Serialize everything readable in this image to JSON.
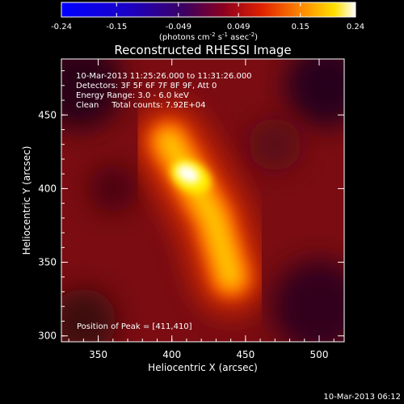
{
  "chart_data": {
    "type": "heatmap",
    "title": "Reconstructed RHESSI Image",
    "colorbar": {
      "ticks": [
        "-0.24",
        "-0.15",
        "-0.049",
        "0.049",
        "0.15",
        "0.24"
      ],
      "range": [
        -0.24,
        0.24
      ],
      "unit_prefix": "(photons cm",
      "unit_exp1": "-2",
      "unit_mid": " s",
      "unit_exp2": "-1",
      "unit_mid2": " asec",
      "unit_exp3": "-2",
      "unit_suffix": ")"
    },
    "xlabel": "Heliocentric X (arcsec)",
    "ylabel": "Heliocentric Y (arcsec)",
    "xlim": [
      325,
      517
    ],
    "ylim": [
      296,
      488
    ],
    "xticks": [
      "350",
      "400",
      "450",
      "500"
    ],
    "yticks": [
      "300",
      "350",
      "400",
      "450"
    ],
    "annotations": [
      "10-Mar-2013 11:25:26.000 to 11:31:26.000",
      "Detectors: 3F 5F 6F 7F 8F 9F, Att 0",
      "Energy Range: 3.0 - 6.0 keV",
      "Clean     Total counts: 7.92E+04"
    ],
    "peak_label": "Position of Peak = [411,410]",
    "peak": [
      411,
      410
    ],
    "peak_value": 0.24,
    "source": {
      "ridge": [
        [
          440,
          340
        ],
        [
          428,
          380
        ],
        [
          411,
          410
        ],
        [
          398,
          432
        ]
      ],
      "ridge_values": [
        0.13,
        0.17,
        0.24,
        0.16
      ],
      "background": 0.06
    },
    "colors": {
      "frame": "#ffffff",
      "low": "#0000ff",
      "mid": "#3d005a",
      "high": "#ffffff"
    }
  },
  "footer": {
    "timestamp": "10-Mar-2013 06:12"
  }
}
